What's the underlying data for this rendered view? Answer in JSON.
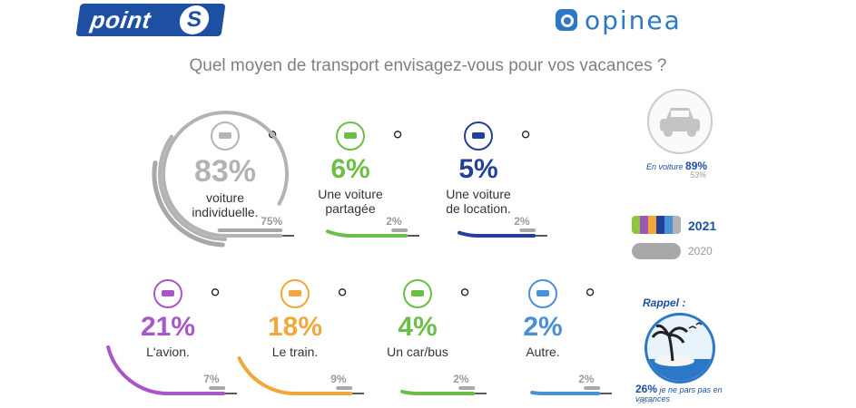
{
  "header": {
    "brand_left": "point",
    "brand_left_badge": "S",
    "brand_right": "opinea",
    "question": "Quel moyen de transport envisagez-vous pour vos vacances ?"
  },
  "chart_data": {
    "type": "radial-bar",
    "title": "Quel moyen de transport envisagez-vous pour vos vacances ?",
    "categories": [
      "voiture individuelle.",
      "Une voiture partagée",
      "Une voiture de location.",
      "L'avion.",
      "Le train.",
      "Un car/bus",
      "Autre."
    ],
    "series": [
      {
        "name": "2021",
        "values": [
          83,
          6,
          5,
          21,
          18,
          4,
          2
        ]
      },
      {
        "name": "2020",
        "values": [
          75,
          2,
          2,
          7,
          9,
          2,
          2
        ]
      }
    ],
    "items": [
      {
        "pct": "83%",
        "line1": "voiture",
        "line2": "individuelle.",
        "prev": "75%",
        "color": "#b3b3b3",
        "icon": "car-icon"
      },
      {
        "pct": "6%",
        "line1": "Une voiture",
        "line2": "partagée",
        "prev": "2%",
        "color": "#6bbf46",
        "icon": "shared-car-icon"
      },
      {
        "pct": "5%",
        "line1": "Une voiture",
        "line2": "de location.",
        "prev": "2%",
        "color": "#23409a",
        "icon": "rental-car-icon"
      },
      {
        "pct": "21%",
        "line1": "L'avion.",
        "line2": "",
        "prev": "7%",
        "color": "#a857c9",
        "icon": "plane-icon"
      },
      {
        "pct": "18%",
        "line1": "Le train.",
        "line2": "",
        "prev": "9%",
        "color": "#f2a73b",
        "icon": "train-icon"
      },
      {
        "pct": "4%",
        "line1": "Un car/bus",
        "line2": "",
        "prev": "2%",
        "color": "#6bbf46",
        "icon": "bus-icon"
      },
      {
        "pct": "2%",
        "line1": "Autre.",
        "line2": "",
        "prev": "2%",
        "color": "#4a90d9",
        "icon": "dots-icon"
      }
    ],
    "legend": {
      "current": "2021",
      "previous": "2020",
      "rainbow": [
        "#8fc63f",
        "#9b59b6",
        "#f2a73b",
        "#23409a",
        "#4a90d9",
        "#b3b3b3"
      ]
    }
  },
  "side": {
    "car_label": "En voiture",
    "car_value": "89%",
    "car_prev": "53%",
    "rappel_title": "Rappel :",
    "rappel_value": "26%",
    "rappel_text": "je ne pars pas en vacances",
    "rappel_prev": "53%"
  }
}
